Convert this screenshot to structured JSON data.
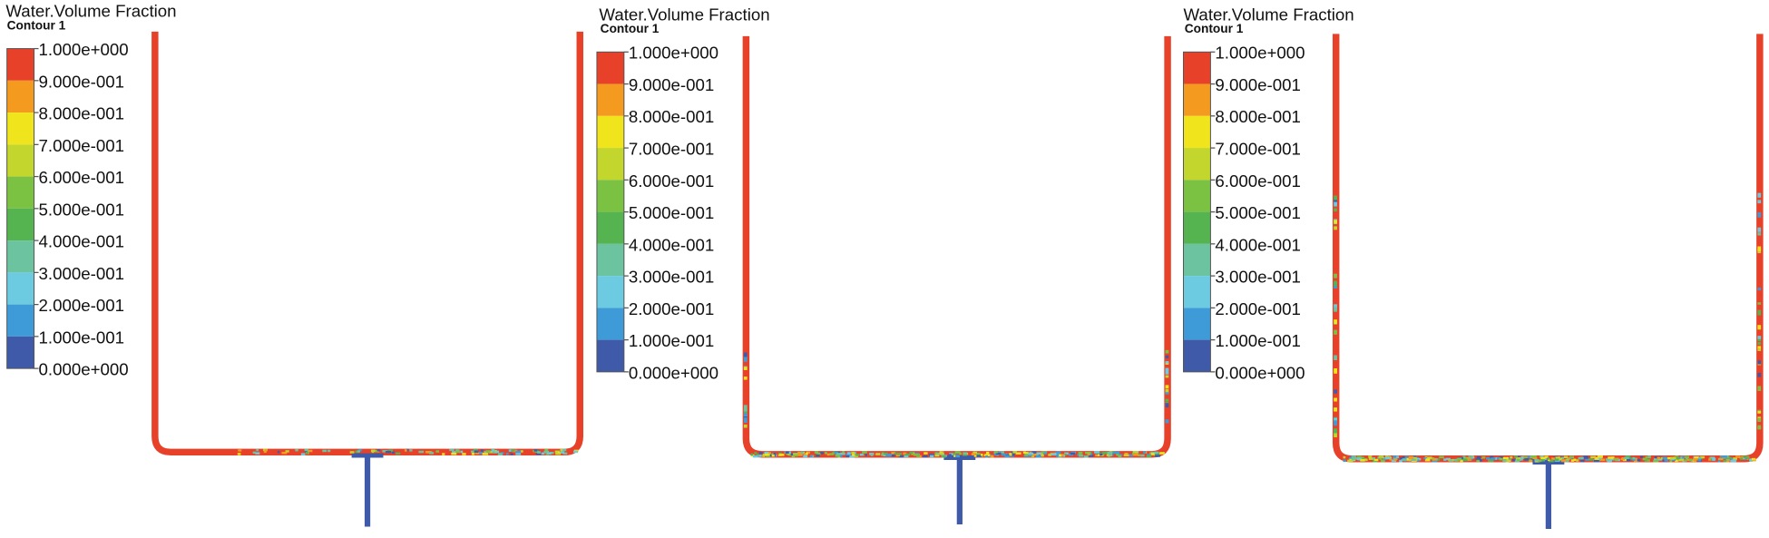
{
  "panels": [
    {
      "title": "Water.Volume Fraction",
      "subtitle": "Contour 1",
      "levels": [
        "1.000e+000",
        "9.000e-001",
        "8.000e-001",
        "7.000e-001",
        "6.000e-001",
        "5.000e-001",
        "4.000e-001",
        "3.000e-001",
        "2.000e-001",
        "1.000e-001",
        "0.000e+000"
      ]
    },
    {
      "title": "Water.Volume Fraction",
      "subtitle": "Contour 1",
      "levels": [
        "1.000e+000",
        "9.000e-001",
        "8.000e-001",
        "7.000e-001",
        "6.000e-001",
        "5.000e-001",
        "4.000e-001",
        "3.000e-001",
        "2.000e-001",
        "1.000e-001",
        "0.000e+000"
      ]
    },
    {
      "title": "Water.Volume Fraction",
      "subtitle": "Contour 1",
      "levels": [
        "1.000e+000",
        "9.000e-001",
        "8.000e-001",
        "7.000e-001",
        "6.000e-001",
        "5.000e-001",
        "4.000e-001",
        "3.000e-001",
        "2.000e-001",
        "1.000e-001",
        "0.000e+000"
      ]
    }
  ],
  "legend_colors": [
    "#e8412a",
    "#f39a1f",
    "#f0e41c",
    "#c2d62d",
    "#7cc242",
    "#55b350",
    "#6cc3a0",
    "#6ccbe0",
    "#3e9bd8",
    "#3f5aa8"
  ]
}
